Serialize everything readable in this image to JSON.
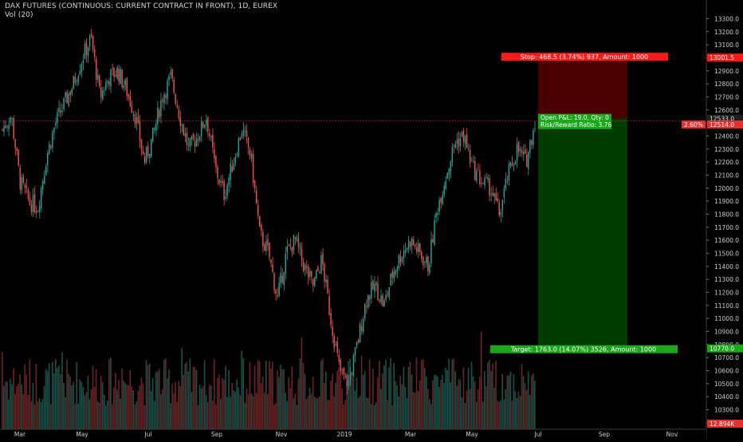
{
  "header": {
    "title": "DAX FUTURES (CONTINUOUS: CURRENT CONTRACT IN FRONT), 1D, EUREX",
    "volume_indicator": "Vol (20)"
  },
  "colors": {
    "background": "#000000",
    "up_candle": "#26a69a",
    "down_candle": "#ef5350",
    "stop_zone": "#4a0000",
    "target_zone": "#003b00",
    "stop_label": "#ff1a1a",
    "target_label": "#1aa81a",
    "price_line": "#d03030"
  },
  "position": {
    "stop_label": "Stop: 468.5 (3.74%) 937, Amount: 1000",
    "target_label": "Target: 1763.0 (14.07%) 3526, Amount: 1000",
    "open_pnl_label": "Open P&L: 19.0, Qty: 0",
    "risk_reward_label": "Risk/Reward Ratio: 3.76"
  },
  "price_axis": {
    "labels": [
      "13300.0",
      "13200.0",
      "13100.0",
      "13000.0",
      "12900.0",
      "12800.0",
      "12700.0",
      "12600.0",
      "12500.0",
      "12400.0",
      "12300.0",
      "12200.0",
      "12100.0",
      "12000.0",
      "11900.0",
      "11800.0",
      "11700.0",
      "11600.0",
      "11500.0",
      "11400.0",
      "11300.0",
      "11200.0",
      "11100.0",
      "11000.0",
      "10900.0",
      "10800.0",
      "10700.0",
      "10600.0",
      "10500.0",
      "10400.0",
      "10300.0",
      "10200.0"
    ],
    "stop_price_tag": "13001.5",
    "entry_price_tag": "12533.0",
    "last_price_tag": "12514.0",
    "change_tag": "2.60%",
    "target_price_tag": "10770.0",
    "volume_tag": "12.894K"
  },
  "time_axis": {
    "labels": [
      "Mar",
      "May",
      "Jul",
      "Sep",
      "Nov",
      "2019",
      "Mar",
      "May",
      "Jul",
      "Sep",
      "Nov"
    ]
  },
  "chart_data": {
    "type": "candlestick",
    "title": "DAX FUTURES (CONTINUOUS: CURRENT CONTRACT IN FRONT), 1D, EUREX",
    "y_range": [
      10150,
      13370
    ],
    "x_ticks": [
      "Mar",
      "May",
      "Jul",
      "Sep",
      "Nov",
      "2019",
      "Mar",
      "May",
      "Jul",
      "Sep",
      "Nov"
    ],
    "close_path": [
      [
        "Feb 2018",
        12450
      ],
      [
        "Feb 2018",
        12560
      ],
      [
        "Mar 2018",
        12050
      ],
      [
        "Mar 2018",
        11900
      ],
      [
        "Mar 2018",
        11850
      ],
      [
        "Apr 2018",
        12250
      ],
      [
        "Apr 2018",
        12500
      ],
      [
        "Apr 2018",
        12650
      ],
      [
        "May 2018",
        12800
      ],
      [
        "May 2018",
        13000
      ],
      [
        "May 2018",
        13150
      ],
      [
        "May 2018",
        12700
      ],
      [
        "Jun 2018",
        12850
      ],
      [
        "Jun 2018",
        12900
      ],
      [
        "Jun 2018",
        12750
      ],
      [
        "Jun 2018",
        12550
      ],
      [
        "Jun 2018",
        12200
      ],
      [
        "Jul 2018",
        12400
      ],
      [
        "Jul 2018",
        12700
      ],
      [
        "Jul 2018",
        12850
      ],
      [
        "Aug 2018",
        12550
      ],
      [
        "Aug 2018",
        12300
      ],
      [
        "Aug 2018",
        12400
      ],
      [
        "Aug 2018",
        12550
      ],
      [
        "Sep 2018",
        12150
      ],
      [
        "Sep 2018",
        11950
      ],
      [
        "Sep 2018",
        12200
      ],
      [
        "Sep 2018",
        12450
      ],
      [
        "Oct 2018",
        12250
      ],
      [
        "Oct 2018",
        11650
      ],
      [
        "Oct 2018",
        11500
      ],
      [
        "Oct 2018",
        11150
      ],
      [
        "Oct 2018",
        11500
      ],
      [
        "Nov 2018",
        11600
      ],
      [
        "Nov 2018",
        11400
      ],
      [
        "Nov 2018",
        11250
      ],
      [
        "Dec 2018",
        11450
      ],
      [
        "Dec 2018",
        11000
      ],
      [
        "Dec 2018",
        10600
      ],
      [
        "Dec 2018",
        10500
      ],
      [
        "Jan 2019",
        10800
      ],
      [
        "Jan 2019",
        11150
      ],
      [
        "Jan 2019",
        11250
      ],
      [
        "Feb 2019",
        11100
      ],
      [
        "Feb 2019",
        11350
      ],
      [
        "Mar 2019",
        11500
      ],
      [
        "Mar 2019",
        11600
      ],
      [
        "Mar 2019",
        11500
      ],
      [
        "Mar 2019",
        11400
      ],
      [
        "Apr 2019",
        11850
      ],
      [
        "Apr 2019",
        12100
      ],
      [
        "Apr 2019",
        12350
      ],
      [
        "May 2019",
        12400
      ],
      [
        "May 2019",
        12150
      ],
      [
        "May 2019",
        12050
      ],
      [
        "May 2019",
        12000
      ],
      [
        "Jun 2019",
        11800
      ],
      [
        "Jun 2019",
        12100
      ],
      [
        "Jun 2019",
        12300
      ],
      [
        "Jun 2019",
        12200
      ],
      [
        "Jul 2019",
        12514
      ]
    ],
    "trade_setup": {
      "entry": 12533.0,
      "stop": 13001.5,
      "target": 10770.0,
      "last": 12514.0,
      "change_percent": "2.60%",
      "risk_reward": 3.76
    },
    "volume_last": "12.894K"
  }
}
